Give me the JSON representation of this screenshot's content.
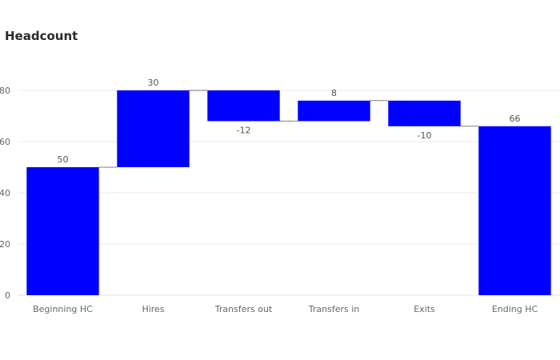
{
  "chart_data": {
    "type": "bar",
    "subtype": "waterfall",
    "title": "Headcount",
    "xlabel": "",
    "ylabel": "",
    "categories": [
      "Beginning HC",
      "Hires",
      "Transfers out",
      "Transfers in",
      "Exits",
      "Ending HC"
    ],
    "measures": [
      "absolute",
      "relative",
      "relative",
      "relative",
      "relative",
      "total"
    ],
    "values": [
      50,
      30,
      -12,
      8,
      -10,
      66
    ],
    "data_labels": [
      "50",
      "30",
      "-12",
      "8",
      "-10",
      "66"
    ],
    "ylim": [
      0,
      80
    ],
    "yticks": [
      0,
      20,
      40,
      60,
      80
    ],
    "grid": true,
    "legend": "none",
    "colors": {
      "bar": "#0000ff",
      "connector": "#000000",
      "grid": "#e8e8e8"
    }
  }
}
